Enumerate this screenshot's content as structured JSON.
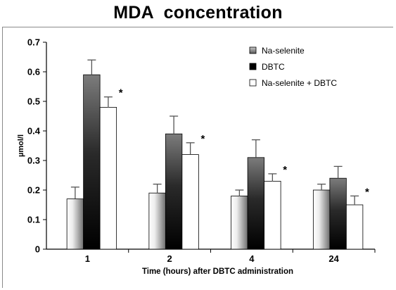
{
  "chart_data": {
    "type": "bar",
    "title": "MDA  concentration",
    "xlabel": "Time (hours) after DBTC administration",
    "ylabel": "µmol/l",
    "ylim": [
      0,
      0.7
    ],
    "yticks": [
      "0",
      "0.1",
      "0.2",
      "0.3",
      "0.4",
      "0.5",
      "0.6",
      "0.7"
    ],
    "grid": false,
    "legend_position": "top-right",
    "categories": [
      "1",
      "2",
      "4",
      "24"
    ],
    "series": [
      {
        "name": "Na-selenite",
        "values": [
          0.17,
          0.19,
          0.18,
          0.2
        ],
        "errors": [
          0.04,
          0.03,
          0.02,
          0.02
        ],
        "fill": "gradient-white-to-grey"
      },
      {
        "name": "DBTC",
        "values": [
          0.59,
          0.39,
          0.31,
          0.24
        ],
        "errors": [
          0.05,
          0.06,
          0.06,
          0.04
        ],
        "fill": "gradient-grey-to-black"
      },
      {
        "name": "Na-selenite + DBTC",
        "values": [
          0.48,
          0.32,
          0.23,
          0.15
        ],
        "errors": [
          0.035,
          0.04,
          0.025,
          0.03
        ],
        "fill": "white",
        "annotation": "*"
      }
    ],
    "colors": {
      "axis": "#000000",
      "frame": "#8a8a8a",
      "grey_dark": "#6c6c6c",
      "grey_light": "#bdbdbd",
      "black": "#000000",
      "white": "#ffffff"
    }
  }
}
